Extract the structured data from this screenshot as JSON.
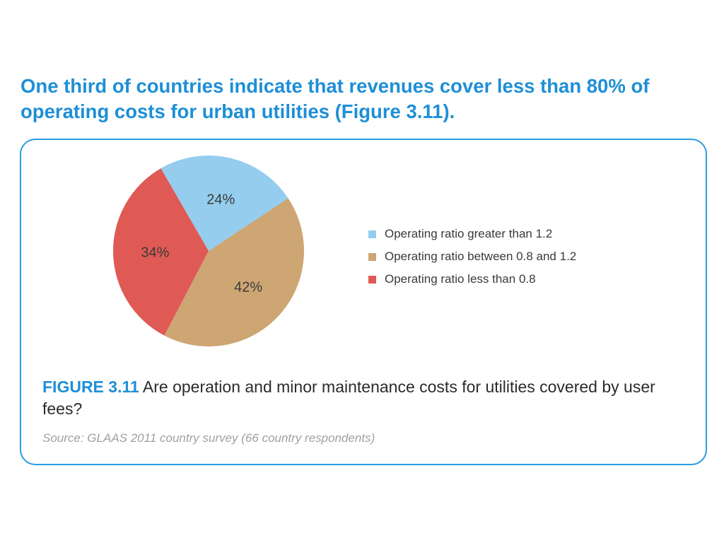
{
  "headline": "One third of countries indicate that revenues cover less than 80% of operating costs for urban utilities (Figure 3.11).",
  "figure": {
    "number": "FIGURE 3.11",
    "title": "Are operation and minor maintenance costs for utilities covered by user fees?",
    "source": "Source: GLAAS 2011 country survey (66 country respondents)"
  },
  "colors": {
    "accent": "#1e8fd6",
    "border": "#2a9ce0"
  },
  "chart_data": {
    "type": "pie",
    "unit": "%",
    "slices": [
      {
        "label": "Operating ratio greater than 1.2",
        "value": 24,
        "display": "24%",
        "color": "#94cdee"
      },
      {
        "label": "Operating ratio between 0.8 and 1.2",
        "value": 42,
        "display": "42%",
        "color": "#cda674"
      },
      {
        "label": "Operating ratio less than 0.8",
        "value": 34,
        "display": "34%",
        "color": "#df5a55"
      }
    ],
    "start": "top-right, clockwise",
    "legend_position": "right"
  }
}
